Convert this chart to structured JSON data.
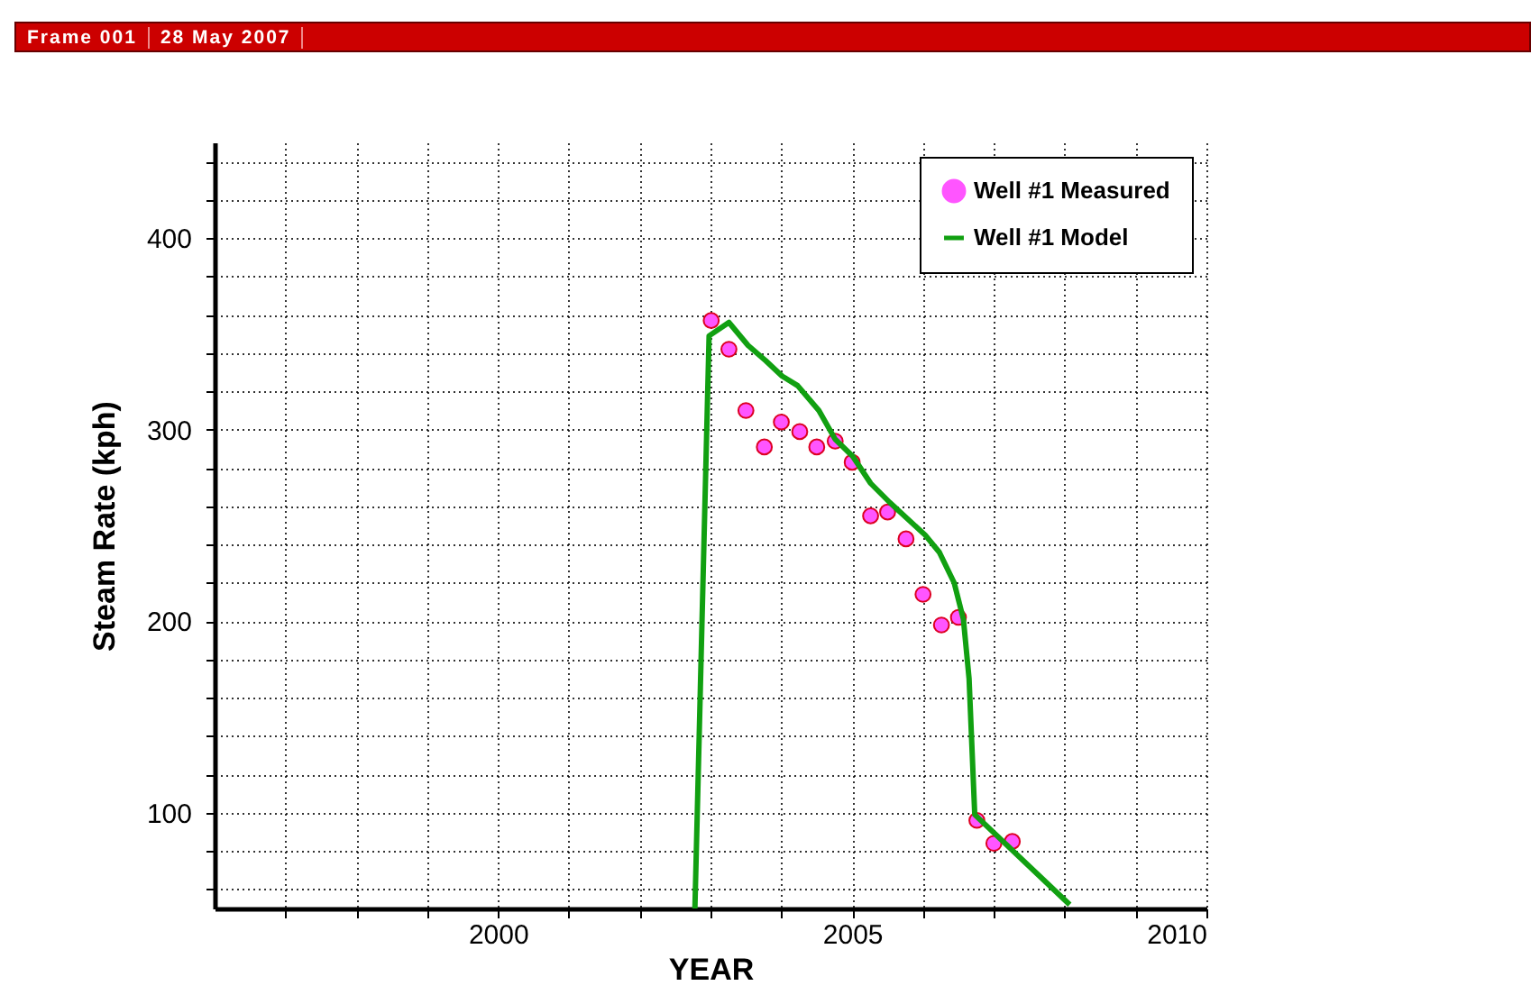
{
  "chart_data": {
    "type": "scatter",
    "xlabel": "YEAR",
    "ylabel": "Steam Rate (kph)",
    "annotations": [
      "Frame 001",
      "28 May 2007"
    ],
    "xlim": [
      1996,
      2010
    ],
    "ylim": [
      50,
      450
    ],
    "xticks": [
      {
        "value": 1997,
        "label": null
      },
      {
        "value": 1998,
        "label": null
      },
      {
        "value": 1999,
        "label": null
      },
      2000,
      {
        "value": 2001,
        "label": null
      },
      {
        "value": 2002,
        "label": null
      },
      {
        "value": 2003,
        "label": null
      },
      {
        "value": 2004,
        "label": null
      },
      2005,
      {
        "value": 2006,
        "label": null
      },
      {
        "value": 2007,
        "label": null
      },
      {
        "value": 2008,
        "label": null
      },
      {
        "value": 2009,
        "label": null
      },
      2010
    ],
    "yticks": [
      {
        "value": 60,
        "label": null
      },
      {
        "value": 80,
        "label": null
      },
      100,
      {
        "value": 120,
        "label": null
      },
      {
        "value": 140,
        "label": null
      },
      {
        "value": 160,
        "label": null
      },
      {
        "value": 180,
        "label": null
      },
      200,
      {
        "value": 220,
        "label": null
      },
      {
        "value": 240,
        "label": null
      },
      {
        "value": 260,
        "label": null
      },
      {
        "value": 280,
        "label": null
      },
      300,
      {
        "value": 320,
        "label": null
      },
      {
        "value": 340,
        "label": null
      },
      {
        "value": 360,
        "label": null
      },
      {
        "value": 380,
        "label": null
      },
      400,
      {
        "value": 420,
        "label": null
      },
      {
        "value": 440,
        "label": null
      }
    ],
    "grid": true,
    "legend": "top right",
    "series": [
      {
        "name": "Well #1 Measured",
        "marker": "circle",
        "color": "#ff55ff",
        "x": [
          2003.01,
          2003.26,
          2003.5,
          2003.76,
          2004.0,
          2004.26,
          2004.5,
          2004.76,
          2005.0,
          2005.26,
          2005.5,
          2005.76,
          2006.0,
          2006.26,
          2006.5,
          2006.76,
          2007.0,
          2007.26
        ],
        "values": [
          357,
          342,
          310,
          291,
          304,
          299,
          291,
          294,
          283,
          255,
          257,
          243,
          214,
          198,
          202,
          96,
          84,
          85
        ]
      },
      {
        "name": "Well #1 Model",
        "type": "line",
        "marker": "none",
        "color": "#11a011",
        "x": [
          2002.78,
          2002.98,
          2003.26,
          2003.53,
          2003.78,
          2004.01,
          2004.23,
          2004.53,
          2004.76,
          2005.01,
          2005.26,
          2005.53,
          2006.03,
          2006.23,
          2006.44,
          2006.57,
          2006.65,
          2006.73,
          2008.07
        ],
        "values": [
          50,
          349,
          356,
          344,
          336,
          328,
          323,
          310,
          295,
          286,
          272,
          262,
          245,
          236,
          220,
          201,
          170,
          99,
          52
        ]
      }
    ]
  }
}
